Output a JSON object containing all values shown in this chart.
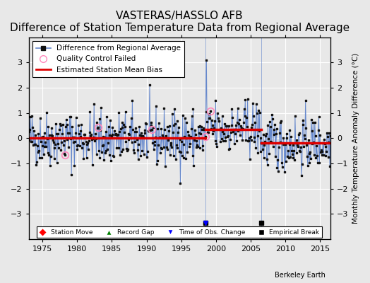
{
  "title": "VASTERAS/HASSLO AFB",
  "subtitle": "Difference of Station Temperature Data from Regional Average",
  "ylabel": "Monthly Temperature Anomaly Difference (°C)",
  "xlabel_credit": "Berkeley Earth",
  "xlim": [
    1973.0,
    2016.5
  ],
  "ylim": [
    -4,
    4
  ],
  "yticks": [
    -3,
    -2,
    -1,
    0,
    1,
    2,
    3
  ],
  "xticks": [
    1975,
    1980,
    1985,
    1990,
    1995,
    2000,
    2005,
    2010,
    2015
  ],
  "bias_segments": [
    {
      "x_start": 1973.0,
      "x_end": 1998.5,
      "bias": 0.0
    },
    {
      "x_start": 1998.5,
      "x_end": 2006.5,
      "bias": 0.35
    },
    {
      "x_start": 2006.5,
      "x_end": 2016.5,
      "bias": -0.2
    }
  ],
  "empirical_breaks": [
    1998.5,
    2006.5
  ],
  "time_obs_change": [
    1998.5
  ],
  "qc_failed_times": [
    1978.25,
    1983.0,
    1990.75,
    1998.5,
    1999.25
  ],
  "background_color": "#e8e8e8",
  "line_color": "#6688cc",
  "dot_color": "#111111",
  "bias_color": "#dd0000",
  "grid_color": "#ffffff",
  "seed": 42
}
